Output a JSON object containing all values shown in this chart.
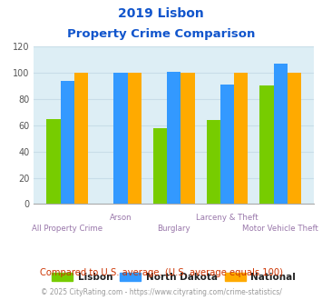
{
  "title_line1": "2019 Lisbon",
  "title_line2": "Property Crime Comparison",
  "categories": [
    "All Property Crime",
    "Arson",
    "Burglary",
    "Larceny & Theft",
    "Motor Vehicle Theft"
  ],
  "lisbon": [
    65,
    0,
    58,
    64,
    90
  ],
  "north_dakota": [
    94,
    100,
    101,
    91,
    107
  ],
  "national": [
    100,
    100,
    100,
    100,
    100
  ],
  "bar_colors": {
    "lisbon": "#77cc00",
    "north_dakota": "#3399ff",
    "national": "#ffaa00"
  },
  "ylim": [
    0,
    120
  ],
  "yticks": [
    0,
    20,
    40,
    60,
    80,
    100,
    120
  ],
  "title_color": "#1155cc",
  "xlabel_color": "#9977aa",
  "footer_note": "Compared to U.S. average. (U.S. average equals 100)",
  "footer_credit": "© 2025 CityRating.com - https://www.cityrating.com/crime-statistics/",
  "legend_labels": [
    "Lisbon",
    "North Dakota",
    "National"
  ],
  "background_color": "#ddeef5",
  "grid_color": "#c8dde8"
}
